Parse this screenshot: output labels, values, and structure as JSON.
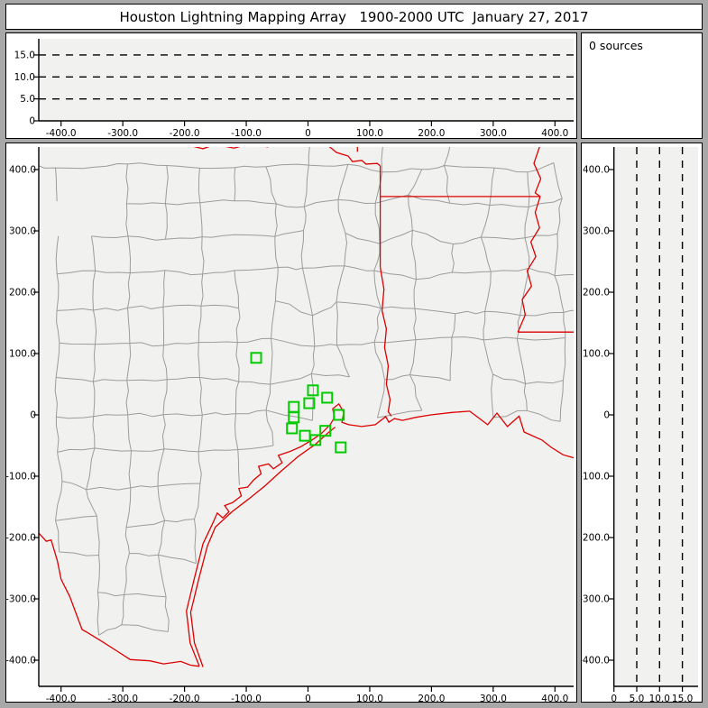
{
  "window": {
    "title": "Houston Lightning Mapping Array   1900-2000 UTC  January 27, 2017"
  },
  "sources_panel": {
    "label": "0 sources"
  },
  "colors": {
    "window_bg": "#a8a8a8",
    "panel_bg": "#ffffff",
    "plot_bg": "#f1f1ef",
    "axis": "#000000",
    "county_line": "#9c9c9c",
    "state_border": "#dd0000",
    "station": "#00cc00",
    "dashed_gridline": "#000000"
  },
  "chart_data": [
    {
      "id": "ew-altitude-view",
      "type": "scatter",
      "points": [],
      "x_axis": {
        "range_km": [
          -436,
          430
        ],
        "ticks": [
          -400,
          -300,
          -200,
          -100,
          0,
          100,
          200,
          300,
          400
        ],
        "tick_labels": [
          "-400.0",
          "-300.0",
          "-200.0",
          "-100.0",
          "0",
          "100.0",
          "200.0",
          "300.0",
          "400.0"
        ]
      },
      "y_axis": {
        "range_km": [
          0,
          18.7
        ],
        "ticks": [
          0,
          5,
          10,
          15
        ],
        "tick_labels": [
          "0",
          "5.0",
          "10.0",
          "15.0"
        ],
        "dashed_gridlines": [
          5,
          10,
          15
        ]
      }
    },
    {
      "id": "plan-view-map",
      "type": "scatter",
      "points": [],
      "x_axis": {
        "range_km": [
          -436,
          430
        ],
        "ticks": [
          -400,
          -300,
          -200,
          -100,
          0,
          100,
          200,
          300,
          400
        ],
        "tick_labels": [
          "-400.0",
          "-300.0",
          "-200.0",
          "-100.0",
          "0",
          "100.0",
          "200.0",
          "300.0",
          "400.0"
        ]
      },
      "y_axis": {
        "range_km": [
          -442,
          437
        ],
        "ticks": [
          400,
          300,
          200,
          100,
          0,
          -100,
          -200,
          -300,
          -400
        ],
        "tick_labels": [
          "400.0",
          "300.0",
          "200.0",
          "100.0",
          "0",
          "-100.0",
          "-200.0",
          "-300.0",
          "-400.0"
        ]
      },
      "stations_km": [
        [
          -84,
          93
        ],
        [
          8,
          40
        ],
        [
          31,
          28
        ],
        [
          2,
          19
        ],
        [
          -23,
          13
        ],
        [
          50,
          0
        ],
        [
          -23,
          -4
        ],
        [
          -26,
          -22
        ],
        [
          28,
          -26
        ],
        [
          -5,
          -34
        ],
        [
          12,
          -41
        ],
        [
          53,
          -53
        ]
      ],
      "state_borders_km": {
        "red-river": [
          [
            -195,
            440
          ],
          [
            -170,
            434
          ],
          [
            -150,
            441
          ],
          [
            -120,
            435
          ],
          [
            -90,
            443
          ],
          [
            -66,
            437
          ],
          [
            -40,
            444
          ],
          [
            -10,
            438
          ],
          [
            20,
            443
          ],
          [
            35,
            437
          ],
          [
            46,
            428
          ],
          [
            65,
            422
          ],
          [
            72,
            413
          ],
          [
            87,
            415
          ],
          [
            94,
            409
          ],
          [
            112,
            410
          ],
          [
            117,
            406
          ]
        ],
        "ok-ar-border": [
          [
            80,
            445
          ],
          [
            80,
            429
          ]
        ],
        "tx-ar-border": [
          [
            117,
            406
          ],
          [
            117,
            356
          ]
        ],
        "ar-la-border": [
          [
            117,
            356
          ],
          [
            376,
            356
          ]
        ],
        "tx-la-border": [
          [
            117,
            356
          ],
          [
            117,
            241
          ]
        ],
        "sabine-river": [
          [
            117,
            241
          ],
          [
            123,
            205
          ],
          [
            120,
            170
          ],
          [
            127,
            140
          ],
          [
            124,
            110
          ],
          [
            130,
            80
          ],
          [
            127,
            50
          ],
          [
            133,
            25
          ],
          [
            130,
            5
          ],
          [
            135,
            -2
          ]
        ],
        "mississippi-river": [
          [
            375,
            437
          ],
          [
            366,
            410
          ],
          [
            377,
            385
          ],
          [
            368,
            362
          ],
          [
            376,
            356
          ],
          [
            368,
            330
          ],
          [
            375,
            305
          ],
          [
            361,
            282
          ],
          [
            369,
            258
          ],
          [
            355,
            235
          ],
          [
            362,
            210
          ],
          [
            347,
            188
          ],
          [
            352,
            163
          ],
          [
            340,
            135
          ]
        ],
        "la-ms-border": [
          [
            340,
            135
          ],
          [
            462,
            135
          ]
        ],
        "rio-grande": [
          [
            -452,
            -190
          ],
          [
            -436,
            -193
          ],
          [
            -424,
            -206
          ],
          [
            -416,
            -204
          ],
          [
            -406,
            -238
          ],
          [
            -400,
            -268
          ],
          [
            -386,
            -296
          ],
          [
            -366,
            -350
          ],
          [
            -357,
            -355
          ],
          [
            -333,
            -370
          ],
          [
            -308,
            -386
          ],
          [
            -288,
            -399
          ],
          [
            -256,
            -401
          ],
          [
            -234,
            -406
          ],
          [
            -206,
            -402
          ],
          [
            -191,
            -408
          ],
          [
            -176,
            -410
          ]
        ],
        "gulf-coastline": [
          [
            -176,
            -410
          ],
          [
            -191,
            -372
          ],
          [
            -197,
            -320
          ],
          [
            -184,
            -266
          ],
          [
            -170,
            -210
          ],
          [
            -154,
            -176
          ],
          [
            -147,
            -160
          ],
          [
            -138,
            -168
          ],
          [
            -128,
            -158
          ],
          [
            -135,
            -148
          ],
          [
            -122,
            -143
          ],
          [
            -108,
            -132
          ],
          [
            -112,
            -120
          ],
          [
            -98,
            -118
          ],
          [
            -88,
            -106
          ],
          [
            -76,
            -96
          ],
          [
            -80,
            -84
          ],
          [
            -64,
            -80
          ],
          [
            -56,
            -88
          ],
          [
            -42,
            -78
          ],
          [
            -48,
            -66
          ],
          [
            -30,
            -60
          ],
          [
            -12,
            -52
          ],
          [
            8,
            -40
          ],
          [
            22,
            -30
          ],
          [
            36,
            -16
          ],
          [
            43,
            -4
          ],
          [
            40,
            10
          ],
          [
            50,
            18
          ],
          [
            58,
            4
          ],
          [
            55,
            -12
          ],
          [
            66,
            -16
          ],
          [
            87,
            -19
          ],
          [
            109,
            -16
          ],
          [
            126,
            -3
          ],
          [
            131,
            -12
          ],
          [
            140,
            -6
          ],
          [
            153,
            -9
          ],
          [
            175,
            -4
          ],
          [
            199,
            0
          ],
          [
            233,
            4
          ],
          [
            262,
            6
          ],
          [
            291,
            -16
          ],
          [
            306,
            3
          ],
          [
            323,
            -19
          ],
          [
            342,
            -2
          ],
          [
            350,
            -28
          ],
          [
            379,
            -41
          ],
          [
            394,
            -53
          ],
          [
            413,
            -65
          ],
          [
            448,
            -75
          ],
          [
            462,
            -78
          ]
        ],
        "barrier-islands": [
          [
            -170,
            -411
          ],
          [
            -184,
            -372
          ],
          [
            -190,
            -322
          ],
          [
            -177,
            -268
          ],
          [
            -163,
            -214
          ],
          [
            -150,
            -183
          ],
          [
            -123,
            -158
          ],
          [
            -96,
            -137
          ],
          [
            -70,
            -116
          ],
          [
            -44,
            -92
          ],
          [
            -16,
            -68
          ],
          [
            12,
            -48
          ],
          [
            34,
            -28
          ],
          [
            44,
            -20
          ]
        ]
      }
    },
    {
      "id": "ns-altitude-view",
      "type": "scatter",
      "points": [],
      "x_axis": {
        "range_km": [
          0,
          18.6
        ],
        "ticks": [
          0,
          5,
          10,
          15
        ],
        "tick_labels": [
          "0",
          "5.0",
          "10.0",
          "15.0"
        ],
        "dashed_gridlines": [
          5,
          10,
          15
        ]
      },
      "y_axis": {
        "range_km": [
          -442,
          437
        ],
        "ticks": [
          400,
          300,
          200,
          100,
          0,
          -100,
          -200,
          -300,
          -400
        ],
        "tick_labels": [
          "400.0",
          "300.0",
          "200.0",
          "100.0",
          "0",
          "-100.0",
          "-200.0",
          "-300.0",
          "-400.0"
        ]
      }
    }
  ]
}
